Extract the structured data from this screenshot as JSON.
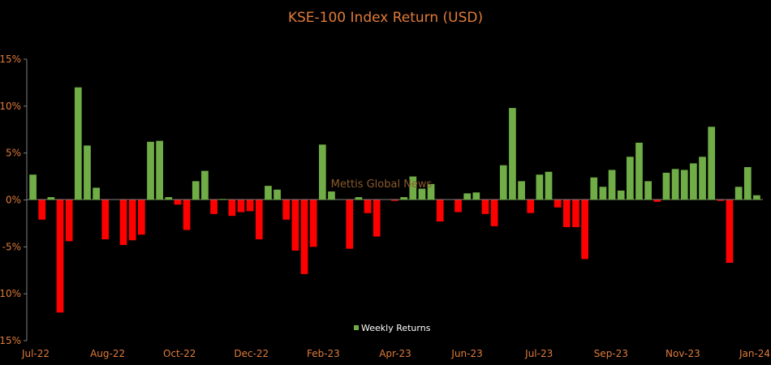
{
  "chart_data": {
    "type": "bar",
    "title": "KSE-100 Index Return (USD)",
    "xlabel": "",
    "ylabel": "",
    "ylim": [
      -15,
      15
    ],
    "y_ticks": [
      "-15%",
      "-10%",
      "-5%",
      "0%",
      "5%",
      "10%",
      "15%"
    ],
    "y_tick_values": [
      -15,
      -10,
      -5,
      0,
      5,
      10,
      15
    ],
    "x_ticks": [
      "Jul-22",
      "Aug-22",
      "Oct-22",
      "Dec-22",
      "Feb-23",
      "Apr-23",
      "Jun-23",
      "Jul-23",
      "Sep-23",
      "Nov-23",
      "Jan-24"
    ],
    "grid": false,
    "legend": "bottom-center",
    "positive_color": "#70ad47",
    "negative_color": "#ff0000",
    "watermark": "Mettis Global News",
    "series": [
      {
        "name": "Weekly Returns",
        "values": [
          2.7,
          -2.1,
          0.3,
          -12.0,
          -4.4,
          12.0,
          5.8,
          1.3,
          -4.2,
          0.0,
          -4.8,
          -4.3,
          -3.7,
          6.2,
          6.3,
          0.3,
          -0.5,
          -3.2,
          2.0,
          3.1,
          -1.5,
          0.1,
          -1.7,
          -1.3,
          -1.2,
          -4.2,
          1.5,
          1.1,
          -2.1,
          -5.4,
          -7.9,
          -5.0,
          5.9,
          0.9,
          0.0,
          -5.2,
          0.3,
          -1.4,
          -3.9,
          0.0,
          -0.1,
          0.3,
          2.5,
          1.2,
          1.7,
          -2.3,
          0.0,
          -1.3,
          0.7,
          0.8,
          -1.5,
          -2.8,
          3.7,
          9.8,
          2.0,
          -1.4,
          2.7,
          3.0,
          -0.8,
          -2.9,
          -2.9,
          -6.3,
          2.4,
          1.4,
          3.2,
          1.0,
          4.6,
          6.1,
          2.0,
          -0.2,
          2.9,
          3.3,
          3.2,
          3.9,
          4.6,
          7.8,
          -0.1,
          -6.7,
          1.4,
          3.5,
          0.5
        ]
      }
    ]
  }
}
